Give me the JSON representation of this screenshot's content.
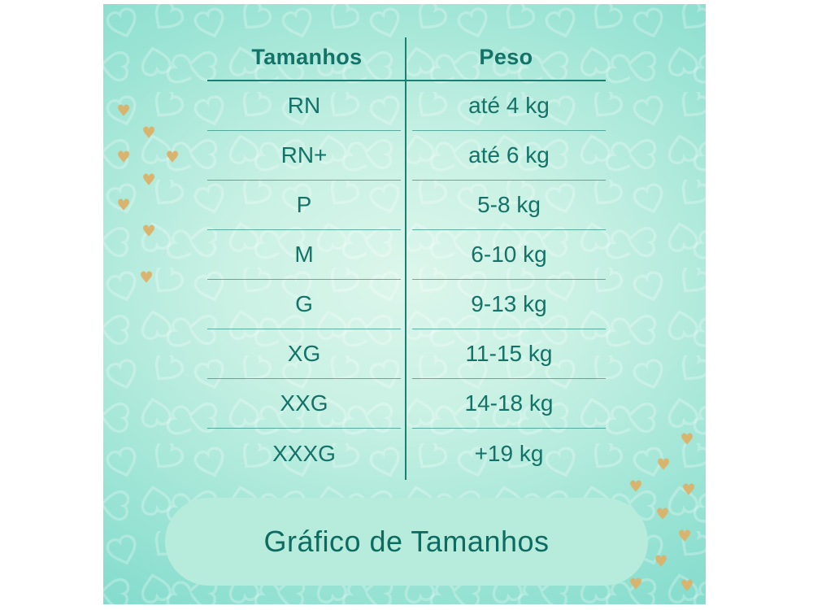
{
  "chart_data": {
    "type": "table",
    "title": "Gráfico de Tamanhos",
    "columns": [
      "Tamanhos",
      "Peso"
    ],
    "rows": [
      [
        "RN",
        "até 4 kg"
      ],
      [
        "RN+",
        "até 6 kg"
      ],
      [
        "P",
        "5-8 kg"
      ],
      [
        "M",
        "6-10 kg"
      ],
      [
        "G",
        "9-13 kg"
      ],
      [
        "XG",
        "11-15 kg"
      ],
      [
        "XXG",
        "14-18 kg"
      ],
      [
        "XXXG",
        "+19 kg"
      ]
    ],
    "layout_hints": {
      "column_divider": "vertical teal rule between columns",
      "header_rule": "solid teal rule under header",
      "row_rules": "thin teal rules between rows with gap at divider"
    }
  },
  "footer": {
    "label": "Gráfico de Tamanhos"
  },
  "decor": {
    "gold_heart_icon": "♥",
    "pattern_heart_icon": "outlined-heart-tile"
  },
  "colors": {
    "panel_center": "#ddf6ec",
    "panel_edge": "#6fd3c4",
    "line": "#1a8073",
    "text": "#147368",
    "pill_bg": "#b7ecdc",
    "pill_text": "#0c6c61",
    "gold": "#d8b46f"
  }
}
